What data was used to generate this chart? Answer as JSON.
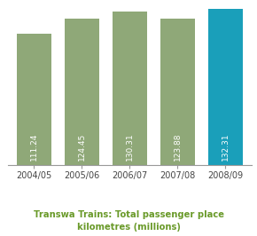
{
  "categories": [
    "2004/05",
    "2005/06",
    "2006/07",
    "2007/08",
    "2008/09"
  ],
  "values": [
    111.24,
    124.45,
    130.31,
    123.88,
    132.31
  ],
  "bar_colors": [
    "#8fa878",
    "#8fa878",
    "#8fa878",
    "#8fa878",
    "#1a9fba"
  ],
  "title": "Transwa Trains: Total passenger place\nkilometres (millions)",
  "title_color": "#6a9a2a",
  "title_fontsize": 7.2,
  "value_labels": [
    "111.24",
    "124.45",
    "130.31",
    "123.88",
    "132.31"
  ],
  "label_color": "#ffffff",
  "label_fontsize": 6.5,
  "ylim": [
    0,
    138
  ],
  "background_color": "#ffffff",
  "xtick_fontsize": 7.0,
  "xtick_color": "#444444"
}
